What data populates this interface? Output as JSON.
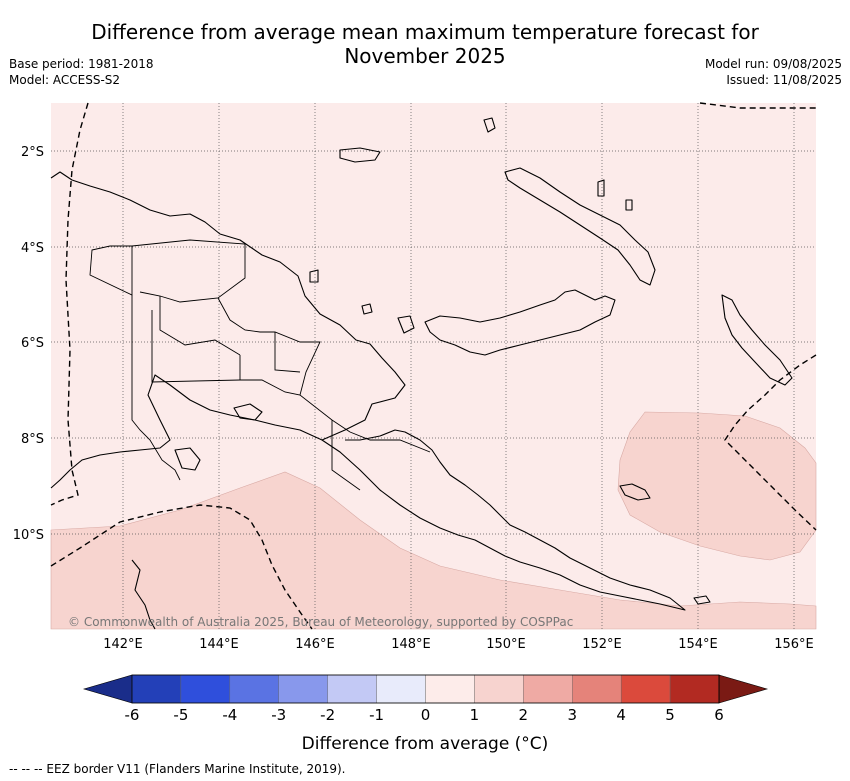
{
  "title_line1": "Difference from average mean maximum temperature forecast for",
  "title_line2": "November 2025",
  "base_period": "Base period: 1981-2018",
  "model": "Model: ACCESS-S2",
  "model_run": "Model run: 09/08/2025",
  "issued": "Issued: 11/08/2025",
  "map": {
    "lon_range": [
      140.5,
      156.5
    ],
    "lat_range": [
      -12,
      -1
    ],
    "lon_ticks": [
      "142°E",
      "144°E",
      "146°E",
      "148°E",
      "150°E",
      "152°E",
      "154°E",
      "156°E"
    ],
    "lat_ticks": [
      "2°S",
      "4°S",
      "6°S",
      "8°S",
      "10°S"
    ],
    "credit": "© Commonwealth of Australia 2025, Bureau of Meteorology, supported by COSPPac"
  },
  "colorbar": {
    "label": "Difference from average (°C)",
    "ticks": [
      "-6",
      "-5",
      "-4",
      "-3",
      "-2",
      "-1",
      "0",
      "1",
      "2",
      "3",
      "4",
      "5",
      "6"
    ],
    "colors": [
      "#1a2d8a",
      "#2340b8",
      "#2f4fdc",
      "#5a73e3",
      "#8898ec",
      "#c3c9f5",
      "#e8ebfb",
      "#fdecea",
      "#f7d3cf",
      "#efaaa4",
      "#e5837a",
      "#db4a3c",
      "#b22a22",
      "#7a1a14"
    ]
  },
  "footnote": "-- -- -- EEZ border V11 (Flanders Marine Institute, 2019).",
  "colors": {
    "background_anomaly": "#fcebea",
    "warm_anomaly": "#f7d4cf",
    "coast": "#000000"
  }
}
